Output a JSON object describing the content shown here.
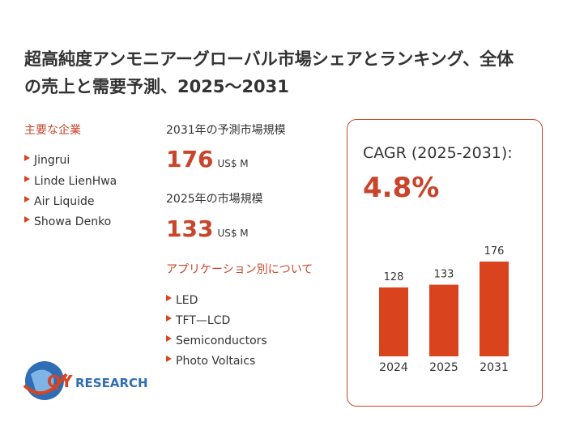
{
  "title": "超高純度アンモニアーグローバル市場シェアとランキング、全体の売上と需要予測、2025～2031",
  "key_players": {
    "heading": "主要な企業",
    "items": [
      "Jingrui",
      "Linde LienHwa",
      "Air Liquide",
      "Showa Denko"
    ]
  },
  "forecast_2031": {
    "label": "2031年の予測市場規模",
    "value": 176,
    "unit": "US$ M"
  },
  "market_2025": {
    "label": "2025年の市場規模",
    "value": 133,
    "unit": "US$ M"
  },
  "applications": {
    "heading": "アプリケーション別について",
    "items": [
      "LED",
      "TFT—LCD",
      "Semiconductors",
      "Photo Voltaics"
    ]
  },
  "cagr": {
    "label": "CAGR (2025-2031):",
    "value": "4.8%"
  },
  "logo": {
    "prefix": "QY",
    "suffix": "RESEARCH"
  },
  "chart_data": {
    "type": "bar",
    "categories": [
      "2024",
      "2025",
      "2031"
    ],
    "values": [
      128,
      133,
      176
    ],
    "color": "#d9441f"
  }
}
